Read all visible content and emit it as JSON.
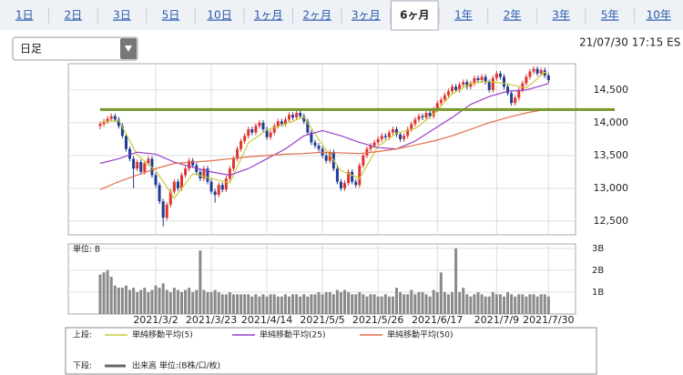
{
  "tabs": [
    "1日",
    "2日",
    "3日",
    "5日",
    "10日",
    "1ヶ月",
    "2ヶ月",
    "3ヶ月",
    "6ヶ月",
    "1年",
    "2年",
    "3年",
    "5年",
    "10年"
  ],
  "active_tab": 8,
  "dropdown": "日足",
  "timestamp": "21/07/30 17:15 ES",
  "chart_data": [
    {
      "type": "candlestick",
      "legend_label": "上段:",
      "up_color": "#e0342c",
      "down_color": "#1f3c94",
      "ylim": [
        12290,
        14900
      ],
      "yticks": [
        {
          "value": 12500,
          "label": "12,500"
        },
        {
          "value": 13000,
          "label": "13,000"
        },
        {
          "value": 13500,
          "label": "13,500"
        },
        {
          "value": 14000,
          "label": "14,000"
        },
        {
          "value": 14500,
          "label": "14,500"
        }
      ],
      "xlim": [
        -8.6,
        128.3
      ],
      "xticks": [
        {
          "value": 15,
          "label": "2021/3/2"
        },
        {
          "value": 30,
          "label": "2021/3/23"
        },
        {
          "value": 45,
          "label": "2021/4/14"
        },
        {
          "value": 60,
          "label": "2021/5/5"
        },
        {
          "value": 75,
          "label": "2021/5/26"
        },
        {
          "value": 91,
          "label": "2021/6/17"
        },
        {
          "value": 107,
          "label": "2021/7/9"
        },
        {
          "value": 121,
          "label": "2021/7/30"
        }
      ],
      "hline": {
        "value": 14200,
        "color": "#76982a"
      },
      "ohlc": [
        [
          13950,
          14020,
          13900,
          13980
        ],
        [
          13980,
          14060,
          13940,
          14020
        ],
        [
          14020,
          14100,
          13980,
          14060
        ],
        [
          14060,
          14140,
          14020,
          14100
        ],
        [
          14100,
          14140,
          14010,
          14050
        ],
        [
          14050,
          14090,
          13910,
          13950
        ],
        [
          13950,
          13990,
          13760,
          13800
        ],
        [
          13800,
          13840,
          13560,
          13600
        ],
        [
          13600,
          13640,
          13410,
          13450
        ],
        [
          13450,
          13490,
          13000,
          13300
        ],
        [
          13300,
          13440,
          13260,
          13400
        ],
        [
          13400,
          13440,
          13210,
          13250
        ],
        [
          13250,
          13420,
          13210,
          13380
        ],
        [
          13380,
          13490,
          13340,
          13450
        ],
        [
          13450,
          13490,
          13160,
          13200
        ],
        [
          13200,
          13240,
          13010,
          13050
        ],
        [
          13050,
          13090,
          12760,
          12800
        ],
        [
          12800,
          12840,
          12420,
          12550
        ],
        [
          12550,
          12790,
          12510,
          12750
        ],
        [
          12750,
          12990,
          12710,
          12950
        ],
        [
          12950,
          13140,
          12910,
          13100
        ],
        [
          13100,
          13140,
          12960,
          13000
        ],
        [
          13000,
          13240,
          12960,
          13200
        ],
        [
          13200,
          13340,
          13160,
          13300
        ],
        [
          13300,
          13460,
          13260,
          13420
        ],
        [
          13420,
          13460,
          13310,
          13350
        ],
        [
          13350,
          13390,
          13210,
          13250
        ],
        [
          13250,
          13290,
          13110,
          13150
        ],
        [
          13150,
          13340,
          13110,
          13300
        ],
        [
          13300,
          13340,
          13060,
          13100
        ],
        [
          13100,
          13140,
          12910,
          12950
        ],
        [
          12950,
          12990,
          12780,
          12900
        ],
        [
          12900,
          13090,
          12860,
          13050
        ],
        [
          13050,
          13090,
          12940,
          12980
        ],
        [
          12980,
          13190,
          12940,
          13150
        ],
        [
          13150,
          13340,
          13110,
          13300
        ],
        [
          13300,
          13490,
          13260,
          13450
        ],
        [
          13450,
          13640,
          13410,
          13600
        ],
        [
          13600,
          13760,
          13560,
          13720
        ],
        [
          13720,
          13840,
          13680,
          13800
        ],
        [
          13800,
          13940,
          13760,
          13900
        ],
        [
          13900,
          13940,
          13810,
          13850
        ],
        [
          13850,
          13990,
          13810,
          13950
        ],
        [
          13950,
          14040,
          13910,
          14000
        ],
        [
          14000,
          14040,
          13860,
          13900
        ],
        [
          13900,
          13940,
          13740,
          13780
        ],
        [
          13780,
          13890,
          13740,
          13850
        ],
        [
          13850,
          13990,
          13810,
          13950
        ],
        [
          13950,
          14060,
          13910,
          14020
        ],
        [
          14020,
          14060,
          13940,
          13980
        ],
        [
          13980,
          14090,
          13940,
          14050
        ],
        [
          14050,
          14160,
          14010,
          14120
        ],
        [
          14120,
          14160,
          14040,
          14080
        ],
        [
          14080,
          14190,
          14040,
          14150
        ],
        [
          14150,
          14190,
          14060,
          14100
        ],
        [
          14100,
          14140,
          13980,
          14020
        ],
        [
          14020,
          14060,
          13810,
          13850
        ],
        [
          13850,
          13890,
          13660,
          13700
        ],
        [
          13700,
          13740,
          13610,
          13650
        ],
        [
          13650,
          13690,
          13560,
          13600
        ],
        [
          13600,
          13640,
          13460,
          13500
        ],
        [
          13500,
          13540,
          13380,
          13420
        ],
        [
          13420,
          13590,
          13380,
          13550
        ],
        [
          13550,
          13590,
          13260,
          13300
        ],
        [
          13300,
          13340,
          13060,
          13100
        ],
        [
          13100,
          13140,
          12960,
          13000
        ],
        [
          13000,
          13120,
          12960,
          13080
        ],
        [
          13080,
          13290,
          13040,
          13250
        ],
        [
          13250,
          13290,
          13060,
          13100
        ],
        [
          13100,
          13140,
          13010,
          13050
        ],
        [
          13050,
          13390,
          13010,
          13350
        ],
        [
          13350,
          13540,
          13310,
          13500
        ],
        [
          13500,
          13640,
          13460,
          13600
        ],
        [
          13600,
          13690,
          13560,
          13650
        ],
        [
          13650,
          13740,
          13610,
          13700
        ],
        [
          13700,
          13790,
          13660,
          13750
        ],
        [
          13750,
          13840,
          13710,
          13800
        ],
        [
          13800,
          13840,
          13740,
          13780
        ],
        [
          13780,
          13890,
          13740,
          13850
        ],
        [
          13850,
          13940,
          13810,
          13900
        ],
        [
          13900,
          13940,
          13780,
          13820
        ],
        [
          13820,
          13860,
          13710,
          13750
        ],
        [
          13750,
          13840,
          13710,
          13800
        ],
        [
          13800,
          13940,
          13760,
          13900
        ],
        [
          13900,
          14020,
          13860,
          13980
        ],
        [
          13980,
          14090,
          13940,
          14050
        ],
        [
          14050,
          14140,
          14010,
          14100
        ],
        [
          14100,
          14140,
          14040,
          14080
        ],
        [
          14080,
          14190,
          14040,
          14150
        ],
        [
          14150,
          14190,
          14060,
          14100
        ],
        [
          14100,
          14240,
          14060,
          14200
        ],
        [
          14200,
          14340,
          14160,
          14300
        ],
        [
          14300,
          14390,
          14260,
          14350
        ],
        [
          14350,
          14460,
          14310,
          14420
        ],
        [
          14420,
          14520,
          14380,
          14480
        ],
        [
          14480,
          14590,
          14440,
          14550
        ],
        [
          14550,
          14590,
          14460,
          14500
        ],
        [
          14500,
          14620,
          14460,
          14580
        ],
        [
          14580,
          14660,
          14540,
          14620
        ],
        [
          14620,
          14660,
          14510,
          14550
        ],
        [
          14550,
          14640,
          14510,
          14600
        ],
        [
          14600,
          14720,
          14560,
          14680
        ],
        [
          14680,
          14720,
          14610,
          14650
        ],
        [
          14650,
          14740,
          14610,
          14700
        ],
        [
          14700,
          14740,
          14580,
          14620
        ],
        [
          14620,
          14660,
          14460,
          14500
        ],
        [
          14500,
          14720,
          14460,
          14680
        ],
        [
          14680,
          14790,
          14640,
          14750
        ],
        [
          14750,
          14790,
          14660,
          14700
        ],
        [
          14700,
          14740,
          14510,
          14550
        ],
        [
          14550,
          14590,
          14410,
          14450
        ],
        [
          14450,
          14490,
          14260,
          14300
        ],
        [
          14300,
          14420,
          14260,
          14380
        ],
        [
          14380,
          14540,
          14340,
          14500
        ],
        [
          14500,
          14640,
          14460,
          14600
        ],
        [
          14600,
          14740,
          14560,
          14700
        ],
        [
          14700,
          14820,
          14660,
          14780
        ],
        [
          14780,
          14860,
          14740,
          14820
        ],
        [
          14820,
          14860,
          14710,
          14750
        ],
        [
          14750,
          14840,
          14710,
          14800
        ],
        [
          14800,
          14840,
          14680,
          14720
        ],
        [
          14720,
          14760,
          14610,
          14650
        ]
      ],
      "series": [
        {
          "name": "単純移動平均(5)",
          "color": "#c8cc3a",
          "x": [
            0,
            5,
            10,
            15,
            20,
            25,
            30,
            35,
            40,
            45,
            50,
            55,
            60,
            65,
            70,
            75,
            80,
            85,
            90,
            95,
            100,
            105,
            110,
            115,
            120,
            121
          ],
          "values": [
            14000,
            14040,
            13510,
            13270,
            12850,
            13220,
            13150,
            13080,
            13690,
            13890,
            13980,
            14090,
            13660,
            13270,
            13150,
            13640,
            13840,
            13910,
            14130,
            14440,
            14600,
            14630,
            14590,
            14530,
            14770,
            14740
          ]
        },
        {
          "name": "単純移動平均(25)",
          "color": "#9b3fc8",
          "x": [
            0,
            5,
            10,
            15,
            20,
            25,
            30,
            35,
            40,
            45,
            50,
            55,
            60,
            65,
            70,
            75,
            80,
            85,
            90,
            95,
            100,
            105,
            110,
            115,
            120,
            121
          ],
          "values": [
            13380,
            13450,
            13550,
            13520,
            13400,
            13320,
            13250,
            13200,
            13300,
            13450,
            13600,
            13800,
            13880,
            13800,
            13700,
            13620,
            13600,
            13720,
            13900,
            14080,
            14280,
            14400,
            14480,
            14500,
            14580,
            14600
          ]
        },
        {
          "name": "単純移動平均(50)",
          "color": "#e0704a",
          "x": [
            0,
            5,
            10,
            15,
            20,
            25,
            30,
            35,
            40,
            45,
            50,
            55,
            60,
            65,
            70,
            75,
            80,
            85,
            90,
            95,
            100,
            105,
            110,
            115,
            120,
            121
          ],
          "values": [
            12980,
            13100,
            13200,
            13300,
            13380,
            13400,
            13420,
            13450,
            13480,
            13500,
            13520,
            13530,
            13550,
            13540,
            13530,
            13560,
            13600,
            13660,
            13720,
            13800,
            13900,
            14000,
            14080,
            14150,
            14200,
            14220
          ]
        }
      ]
    },
    {
      "type": "bar",
      "legend_label": "下段:",
      "name": "出来高 単位:(B株/口/枚)",
      "unit_label": "単位: B",
      "color": "#8a8a8a",
      "ylim": [
        0,
        3.2
      ],
      "yticks": [
        {
          "value": 1,
          "label": "1B"
        },
        {
          "value": 2,
          "label": "2B"
        },
        {
          "value": 3,
          "label": "3B"
        }
      ],
      "values": [
        1.8,
        1.9,
        2.0,
        1.7,
        1.3,
        1.2,
        1.2,
        1.3,
        1.1,
        1.2,
        1.0,
        1.1,
        1.2,
        1.0,
        1.1,
        1.3,
        1.2,
        1.4,
        1.1,
        1.0,
        1.2,
        1.1,
        1.0,
        1.1,
        1.2,
        1.0,
        1.1,
        2.9,
        1.1,
        1.0,
        1.0,
        1.1,
        1.0,
        0.9,
        0.9,
        1.0,
        0.9,
        0.9,
        0.9,
        0.9,
        0.9,
        0.8,
        0.9,
        0.8,
        0.9,
        0.8,
        0.9,
        0.9,
        0.8,
        0.8,
        0.9,
        0.8,
        0.9,
        0.9,
        0.8,
        0.9,
        0.8,
        0.9,
        0.9,
        1.0,
        0.9,
        1.0,
        1.0,
        0.9,
        1.1,
        1.0,
        1.1,
        1.0,
        0.9,
        0.9,
        1.0,
        0.9,
        0.8,
        0.9,
        0.9,
        0.8,
        0.8,
        0.9,
        0.8,
        0.8,
        1.2,
        1.0,
        0.9,
        0.9,
        1.1,
        0.9,
        1.0,
        1.0,
        0.9,
        0.8,
        1.1,
        1.0,
        1.9,
        1.0,
        0.9,
        1.0,
        3.0,
        1.0,
        1.2,
        0.9,
        0.8,
        0.9,
        1.0,
        0.9,
        0.8,
        0.8,
        1.0,
        0.9,
        0.9,
        0.8,
        1.0,
        0.9,
        0.8,
        0.9,
        0.9,
        0.8,
        0.9,
        0.9,
        0.8,
        0.9,
        0.9,
        0.8
      ]
    }
  ]
}
